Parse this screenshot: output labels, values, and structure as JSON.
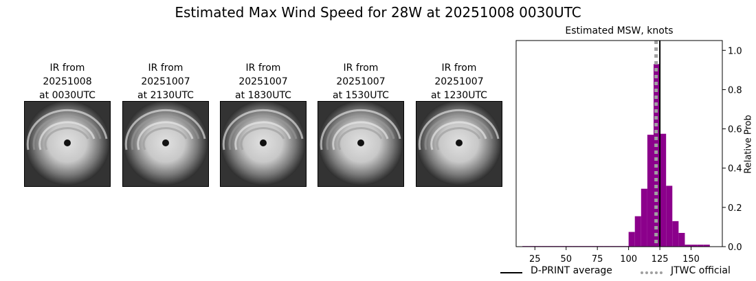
{
  "figure": {
    "suptitle": "Estimated Max Wind Speed for 28W at 20251008 0030UTC"
  },
  "ir_panels": [
    {
      "line1": "IR from",
      "line2": "20251008",
      "line3": "at 0030UTC"
    },
    {
      "line1": "IR from",
      "line2": "20251007",
      "line3": "at 2130UTC"
    },
    {
      "line1": "IR from",
      "line2": "20251007",
      "line3": "at 1830UTC"
    },
    {
      "line1": "IR from",
      "line2": "20251007",
      "line3": "at 1530UTC"
    },
    {
      "line1": "IR from",
      "line2": "20251007",
      "line3": "at 1230UTC"
    }
  ],
  "chart_data": {
    "type": "bar",
    "title": "Estimated MSW, knots",
    "xlabel": "",
    "ylabel": "Relative Prob",
    "xlim": [
      10,
      175
    ],
    "ylim": [
      0,
      1.05
    ],
    "xticks": [
      25,
      50,
      75,
      100,
      125,
      150
    ],
    "yticks": [
      0.0,
      0.2,
      0.4,
      0.6,
      0.8,
      1.0
    ],
    "ytick_labels": [
      "0.0",
      "0.2",
      "0.4",
      "0.6",
      "0.8",
      "1.0"
    ],
    "y_axis_side": "right",
    "bar_color": "#8b008b",
    "bin_width": 5,
    "bins": [
      {
        "x": 17.5,
        "y": 0.003
      },
      {
        "x": 22.5,
        "y": 0.003
      },
      {
        "x": 27.5,
        "y": 0.003
      },
      {
        "x": 32.5,
        "y": 0.003
      },
      {
        "x": 37.5,
        "y": 0.003
      },
      {
        "x": 42.5,
        "y": 0.003
      },
      {
        "x": 47.5,
        "y": 0.003
      },
      {
        "x": 52.5,
        "y": 0.003
      },
      {
        "x": 57.5,
        "y": 0.003
      },
      {
        "x": 62.5,
        "y": 0.003
      },
      {
        "x": 67.5,
        "y": 0.003
      },
      {
        "x": 72.5,
        "y": 0.003
      },
      {
        "x": 77.5,
        "y": 0.003
      },
      {
        "x": 82.5,
        "y": 0.003
      },
      {
        "x": 87.5,
        "y": 0.003
      },
      {
        "x": 92.5,
        "y": 0.003
      },
      {
        "x": 97.5,
        "y": 0.003
      },
      {
        "x": 102.5,
        "y": 0.075
      },
      {
        "x": 107.5,
        "y": 0.155
      },
      {
        "x": 112.5,
        "y": 0.295
      },
      {
        "x": 117.5,
        "y": 0.57
      },
      {
        "x": 122.5,
        "y": 0.93
      },
      {
        "x": 127.5,
        "y": 0.575
      },
      {
        "x": 132.5,
        "y": 0.31
      },
      {
        "x": 137.5,
        "y": 0.13
      },
      {
        "x": 142.5,
        "y": 0.07
      },
      {
        "x": 147.5,
        "y": 0.01
      },
      {
        "x": 152.5,
        "y": 0.01
      },
      {
        "x": 157.5,
        "y": 0.01
      },
      {
        "x": 162.5,
        "y": 0.01
      }
    ],
    "series_lines": [
      {
        "name": "D-PRINT average",
        "x": 125,
        "color": "#000000",
        "style": "solid"
      },
      {
        "name": "JTWC official",
        "x": 122,
        "color": "#a0a0a0",
        "style": "dotted"
      }
    ],
    "legend": [
      "D-PRINT average",
      "JTWC official"
    ],
    "legend_placement": "bottom-right",
    "grid": false
  }
}
